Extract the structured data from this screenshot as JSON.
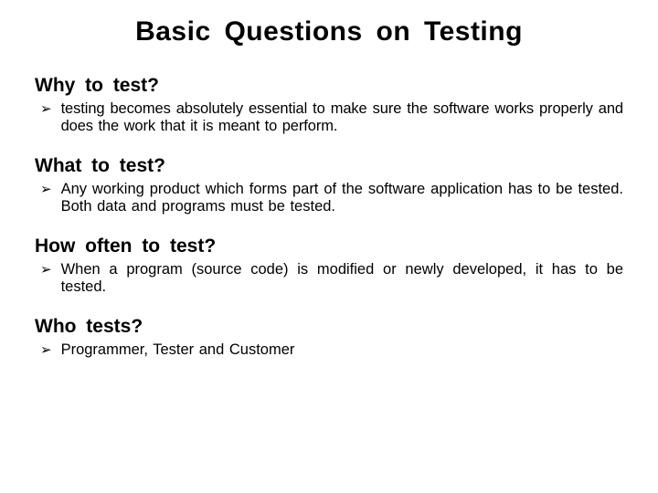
{
  "title": "Basic  Questions  on  Testing",
  "bullet_glyph": "➢",
  "colors": {
    "text": "#000000",
    "background": "#ffffff"
  },
  "typography": {
    "title_fontsize": 30,
    "heading_fontsize": 21,
    "body_fontsize": 16.5,
    "font_family": "Arial"
  },
  "sections": [
    {
      "heading": "Why  to  test?",
      "bullets": [
        "testing becomes absolutely essential to make sure the software works properly  and  does  the  work  that  it  is  meant  to  perform."
      ]
    },
    {
      "heading": "What  to  test?",
      "bullets": [
        "Any  working  product  which  forms  part  of  the  software  application has to be tested. Both data and programs must be tested."
      ]
    },
    {
      "heading": "How  often  to  test?",
      "bullets": [
        "When  a  program  (source  code)  is  modified  or newly developed,  it has  to  be  tested."
      ]
    },
    {
      "heading": "Who  tests?",
      "bullets": [
        "Programmer, Tester and Customer"
      ]
    }
  ]
}
